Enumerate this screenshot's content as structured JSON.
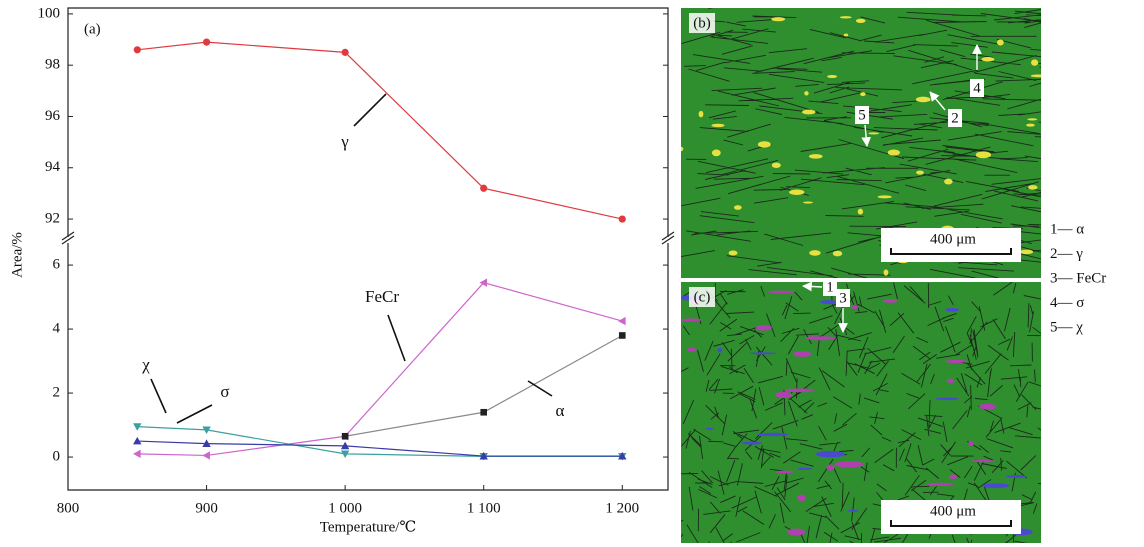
{
  "chart_data": [
    {
      "type": "line",
      "title": "(a)",
      "x": [
        850,
        900,
        1000,
        1100,
        1200
      ],
      "xlim": [
        800,
        1233
      ],
      "ylim": [
        91.3,
        100.23
      ],
      "yticks": [
        92,
        94,
        96,
        98,
        100
      ],
      "series": [
        {
          "name": "γ",
          "color": "#e0393e",
          "marker": "circle",
          "values": [
            98.6,
            98.9,
            98.5,
            93.2,
            92.0
          ]
        }
      ]
    },
    {
      "type": "line",
      "x": [
        850,
        900,
        1000,
        1100,
        1200
      ],
      "xlim": [
        800,
        1233
      ],
      "xticks": [
        800,
        900,
        {
          "value": 1000,
          "label": "1 000"
        },
        {
          "value": 1100,
          "label": "1 100"
        },
        {
          "value": 1200,
          "label": "1 200"
        }
      ],
      "ylim": [
        -1.03,
        6.69
      ],
      "yticks": [
        0,
        2,
        4,
        6
      ],
      "xlabel": "Temperature/℃",
      "ylabel": "Area/%",
      "series": [
        {
          "name": "FeCr",
          "color": "#cc66cc",
          "marker": "tri-left",
          "values": [
            0.1,
            0.05,
            0.65,
            5.45,
            4.25
          ]
        },
        {
          "name": "α",
          "color": "#222222",
          "line_color": "#8a8a8a",
          "marker": "square",
          "values": [
            null,
            null,
            0.65,
            1.4,
            3.8
          ]
        },
        {
          "name": "σ",
          "color": "#3aa0a0",
          "marker": "tri-down",
          "values": [
            0.95,
            0.85,
            0.1,
            0.02,
            0.02
          ]
        },
        {
          "name": "χ",
          "color": "#3a3aa8",
          "marker": "tri-up",
          "values": [
            0.5,
            0.42,
            0.35,
            0.03,
            0.03
          ]
        }
      ]
    }
  ],
  "micrographs": [
    {
      "label": "(b)",
      "scale_bar": "400 μm",
      "markers": [
        "4",
        "2",
        "5"
      ]
    },
    {
      "label": "(c)",
      "scale_bar": "400 μm",
      "markers": [
        "1",
        "3"
      ]
    }
  ],
  "phase_key": [
    "1— α",
    "2— γ",
    "3— FeCr",
    "4— σ",
    "5— χ"
  ]
}
